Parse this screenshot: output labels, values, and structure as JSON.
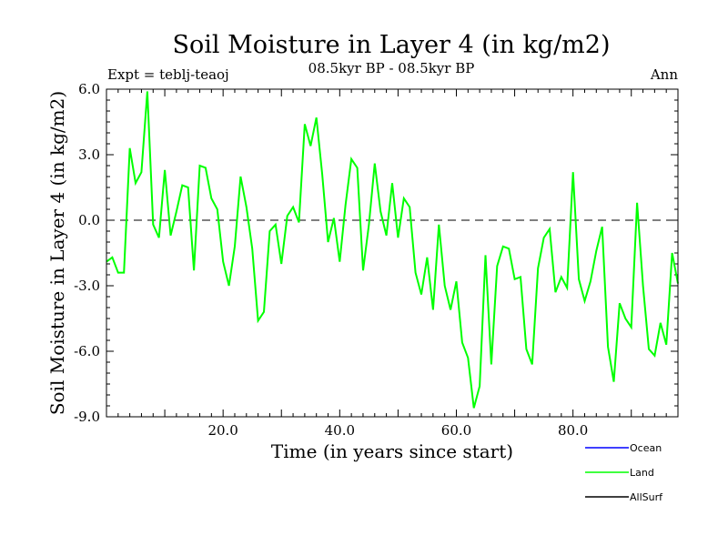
{
  "chart_data": {
    "type": "line",
    "title": "Soil Moisture in Layer 4 (in kg/m2)",
    "subtitle": "08.5kyr BP - 08.5kyr BP",
    "experiment_label": "Expt = teblj-teaoj",
    "period_label": "Ann",
    "xlabel": "Time (in years since start)",
    "ylabel": "Soil Moisture in Layer 4 (in kg/m2)",
    "xlim": [
      0,
      98
    ],
    "ylim": [
      -9.0,
      6.0
    ],
    "x_ticks": [
      20,
      40,
      60,
      80
    ],
    "x_tick_labels": [
      "20.0",
      "40.0",
      "60.0",
      "80.0"
    ],
    "y_ticks": [
      -9,
      -6,
      -3,
      0,
      3,
      6
    ],
    "y_tick_labels": [
      "-9.0",
      "-6.0",
      "-3.0",
      "0.0",
      "3.0",
      "6.0"
    ],
    "zero_line": "dashed",
    "legend": [
      {
        "name": "Ocean",
        "color": "#0000ff"
      },
      {
        "name": "Land",
        "color": "#00ff00"
      },
      {
        "name": "AllSurf",
        "color": "#000000"
      }
    ],
    "series": [
      {
        "name": "Land",
        "color": "#00ff00",
        "x": [
          0,
          1,
          2,
          3,
          4,
          5,
          6,
          7,
          8,
          9,
          10,
          11,
          12,
          13,
          14,
          15,
          16,
          17,
          18,
          19,
          20,
          21,
          22,
          23,
          24,
          25,
          26,
          27,
          28,
          29,
          30,
          31,
          32,
          33,
          34,
          35,
          36,
          37,
          38,
          39,
          40,
          41,
          42,
          43,
          44,
          45,
          46,
          47,
          48,
          49,
          50,
          51,
          52,
          53,
          54,
          55,
          56,
          57,
          58,
          59,
          60,
          61,
          62,
          63,
          64,
          65,
          66,
          67,
          68,
          69,
          70,
          71,
          72,
          73,
          74,
          75,
          76,
          77,
          78,
          79,
          80,
          81,
          82,
          83,
          84,
          85,
          86,
          87,
          88,
          89,
          90,
          91,
          92,
          93,
          94,
          95,
          96,
          97,
          98
        ],
        "values": [
          -1.9,
          -1.7,
          -2.4,
          -2.4,
          3.3,
          1.7,
          2.2,
          5.9,
          -0.2,
          -0.8,
          2.3,
          -0.7,
          0.4,
          1.6,
          1.5,
          -2.3,
          2.5,
          2.4,
          1.0,
          0.5,
          -1.9,
          -3.0,
          -1.2,
          2.0,
          0.6,
          -1.3,
          -4.6,
          -4.2,
          -0.5,
          -0.2,
          -2.0,
          0.2,
          0.6,
          -0.1,
          4.4,
          3.4,
          4.7,
          2.1,
          -1.0,
          0.1,
          -1.9,
          0.7,
          2.8,
          2.4,
          -2.3,
          -0.2,
          2.6,
          0.4,
          -0.7,
          1.7,
          -0.8,
          1.0,
          0.6,
          -2.4,
          -3.4,
          -1.7,
          -4.1,
          -0.2,
          -3.0,
          -4.1,
          -2.8,
          -5.6,
          -6.3,
          -8.6,
          -7.6,
          -1.6,
          -6.6,
          -2.1,
          -1.2,
          -1.3,
          -2.7,
          -2.6,
          -5.9,
          -6.6,
          -2.2,
          -0.8,
          -0.4,
          -3.3,
          -2.6,
          -3.1,
          2.2,
          -2.7,
          -3.7,
          -2.8,
          -1.4,
          -0.3,
          -5.8,
          -7.4,
          -3.8,
          -4.5,
          -4.9,
          0.8,
          -3.0,
          -5.9,
          -6.2,
          -4.7,
          -5.7,
          -1.5,
          -2.9
        ]
      }
    ]
  }
}
